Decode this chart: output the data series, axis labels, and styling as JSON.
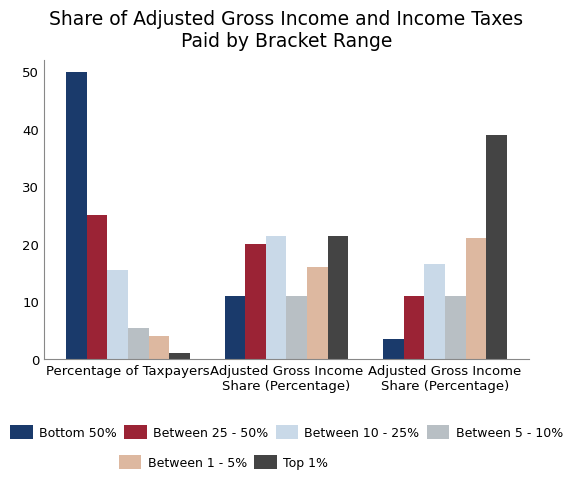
{
  "title": "Share of Adjusted Gross Income and Income Taxes\nPaid by Bracket Range",
  "categories": [
    "Percentage of Taxpayers",
    "Adjusted Gross Income\nShare (Percentage)",
    "Adjusted Gross Income\nShare (Percentage)"
  ],
  "series": {
    "Bottom 50%": [
      50,
      11,
      3.5
    ],
    "Between 25 - 50%": [
      25,
      20,
      11
    ],
    "Between 10 - 25%": [
      15.5,
      21.5,
      16.5
    ],
    "Between 5 - 10%": [
      5.5,
      11,
      11
    ],
    "Between 1 - 5%": [
      4,
      16,
      21
    ],
    "Top 1%": [
      1,
      21.5,
      39
    ]
  },
  "colors": {
    "Bottom 50%": "#1a3a6b",
    "Between 25 - 50%": "#9b2335",
    "Between 10 - 25%": "#c9d9e8",
    "Between 5 - 10%": "#b8bfc4",
    "Between 1 - 5%": "#ddb8a0",
    "Top 1%": "#444444"
  },
  "ylim": [
    0,
    52
  ],
  "yticks": [
    0,
    10,
    20,
    30,
    40,
    50
  ],
  "background_color": "#ffffff",
  "title_fontsize": 13.5,
  "legend_fontsize": 9,
  "tick_fontsize": 9.5,
  "group_width": 0.78,
  "legend_order": [
    "Bottom 50%",
    "Between 25 - 50%",
    "Between 10 - 25%",
    "Between 5 - 10%",
    "Between 1 - 5%",
    "Top 1%"
  ]
}
